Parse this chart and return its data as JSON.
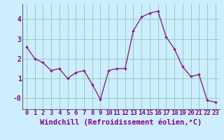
{
  "x": [
    0,
    1,
    2,
    3,
    4,
    5,
    6,
    7,
    8,
    9,
    10,
    11,
    12,
    13,
    14,
    15,
    16,
    17,
    18,
    19,
    20,
    21,
    22,
    23
  ],
  "y": [
    2.6,
    2.0,
    1.8,
    1.4,
    1.5,
    1.0,
    1.3,
    1.4,
    0.7,
    -0.05,
    1.4,
    1.5,
    1.5,
    3.4,
    4.1,
    4.3,
    4.4,
    3.1,
    2.5,
    1.6,
    1.1,
    1.2,
    -0.1,
    -0.2
  ],
  "line_color": "#882288",
  "marker": "D",
  "marker_size": 1.8,
  "bg_color": "#cceeff",
  "grid_color": "#99ccbb",
  "xlabel": "Windchill (Refroidissement éolien,°C)",
  "xlim": [
    -0.5,
    23.5
  ],
  "ylim": [
    -0.55,
    4.75
  ],
  "yticks": [
    0,
    1,
    2,
    3,
    4
  ],
  "ytick_labels": [
    "-0",
    "1",
    "2",
    "3",
    "4"
  ],
  "xticks": [
    0,
    1,
    2,
    3,
    4,
    5,
    6,
    7,
    8,
    9,
    10,
    11,
    12,
    13,
    14,
    15,
    16,
    17,
    18,
    19,
    20,
    21,
    22,
    23
  ],
  "tick_fontsize": 6.5,
  "xlabel_fontsize": 7.5,
  "line_width": 1.0,
  "label_color": "#880088"
}
